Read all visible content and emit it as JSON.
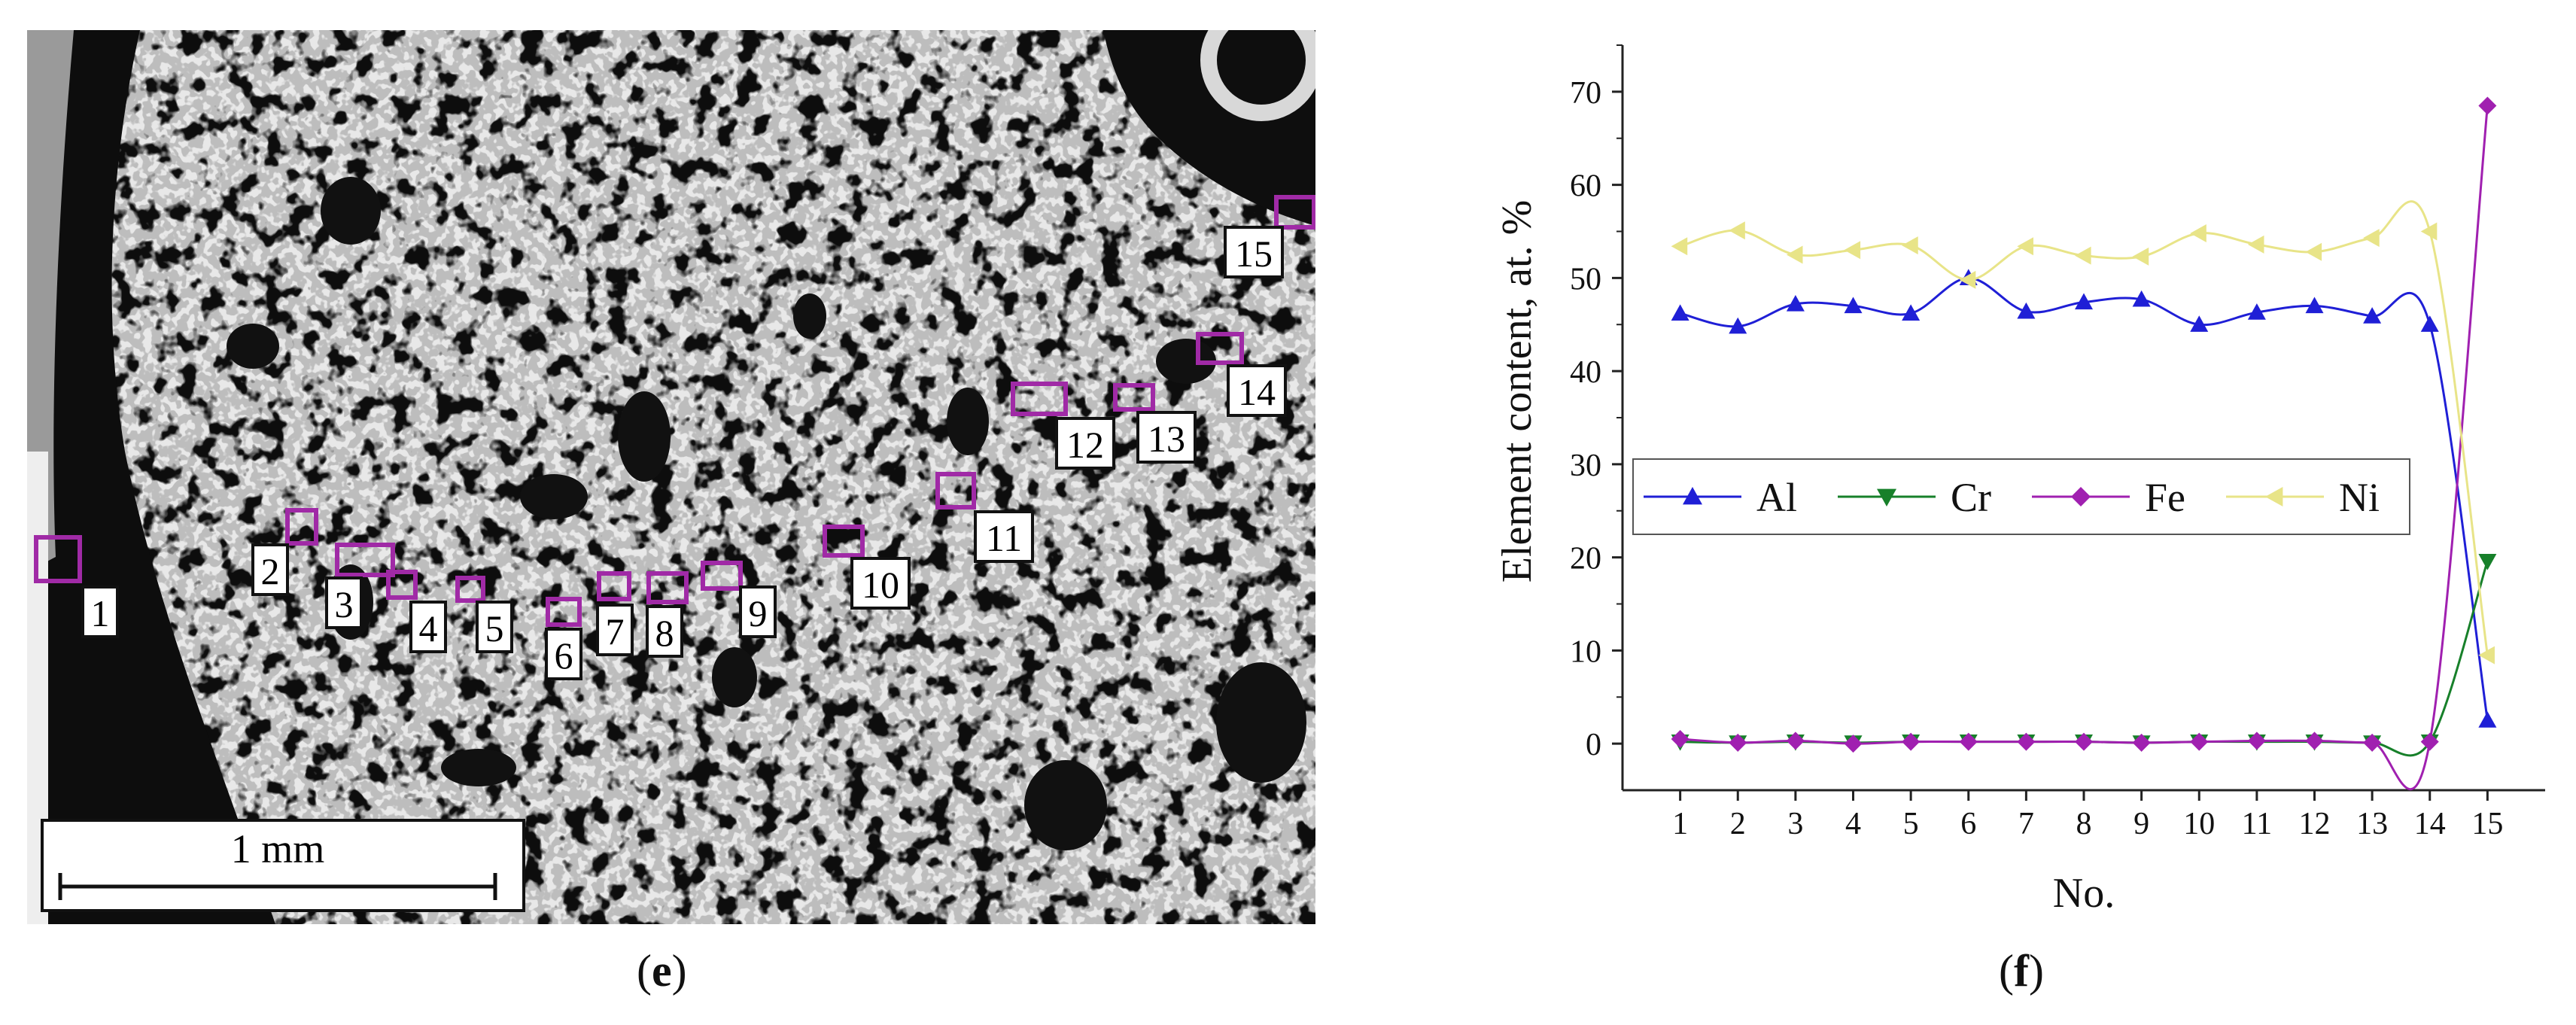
{
  "micrograph": {
    "scale_bar_label": "1 mm",
    "region_labels": [
      "1",
      "2",
      "3",
      "4",
      "5",
      "6",
      "7",
      "8",
      "9",
      "10",
      "11",
      "12",
      "13",
      "14",
      "15"
    ],
    "marker_color": "#a02aa6"
  },
  "captions": {
    "left_open": "(",
    "left_letter": "e",
    "left_close": ")",
    "right_open": "(",
    "right_letter": "f",
    "right_close": ")"
  },
  "chart_data": {
    "type": "line",
    "xlabel": "No.",
    "ylabel": "Element content, at. %",
    "x": [
      1,
      2,
      3,
      4,
      5,
      6,
      7,
      8,
      9,
      10,
      11,
      12,
      13,
      14,
      15
    ],
    "xlim": [
      0,
      16
    ],
    "ylim": [
      -5,
      75
    ],
    "yticks": [
      0,
      10,
      20,
      30,
      40,
      50,
      60,
      70
    ],
    "legend_position": "center-right",
    "series": [
      {
        "name": "Al",
        "color": "#1f1fd6",
        "marker": "triangle-up",
        "values": [
          46.2,
          44.8,
          47.2,
          47.0,
          46.2,
          50.0,
          46.4,
          47.4,
          47.7,
          45.0,
          46.3,
          47.0,
          45.9,
          45.0,
          2.5
        ]
      },
      {
        "name": "Cr",
        "color": "#17802a",
        "marker": "triangle-down",
        "values": [
          0.2,
          0.1,
          0.2,
          0.1,
          0.2,
          0.2,
          0.2,
          0.2,
          0.1,
          0.2,
          0.2,
          0.2,
          0.1,
          0.2,
          19.6
        ]
      },
      {
        "name": "Fe",
        "color": "#a020b0",
        "marker": "diamond",
        "values": [
          0.5,
          0.1,
          0.3,
          0.0,
          0.2,
          0.2,
          0.2,
          0.2,
          0.1,
          0.2,
          0.3,
          0.3,
          0.1,
          0.2,
          68.5
        ]
      },
      {
        "name": "Ni",
        "color": "#e8e488",
        "marker": "triangle-left",
        "values": [
          53.4,
          55.1,
          52.5,
          53.0,
          53.5,
          49.8,
          53.4,
          52.4,
          52.3,
          54.8,
          53.6,
          52.8,
          54.3,
          55.0,
          9.5
        ]
      }
    ]
  }
}
